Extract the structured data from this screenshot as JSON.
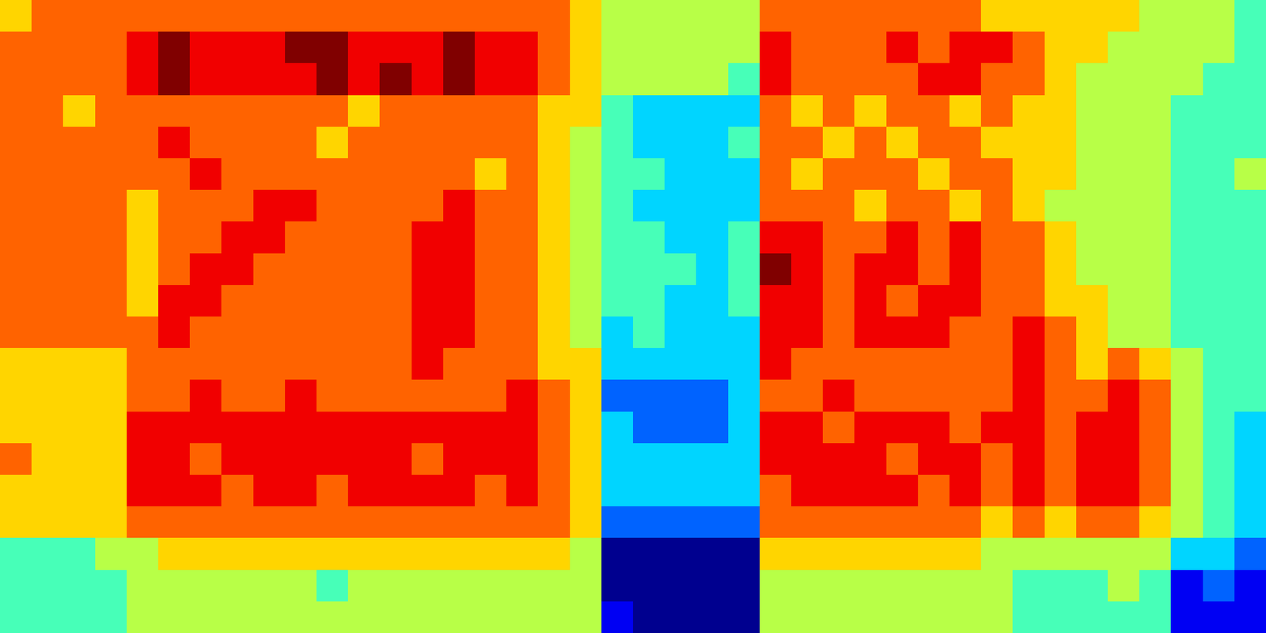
{
  "chart_data": {
    "type": "heatmap",
    "color": "jet",
    "tick_labels": false,
    "cells": [
      [
        6,
        7,
        7,
        7,
        7,
        7,
        7,
        7,
        7,
        7,
        7,
        7,
        7,
        7,
        7,
        7,
        7,
        7,
        6,
        5,
        5,
        5,
        5,
        5,
        7,
        7,
        7,
        7,
        7,
        7,
        7,
        6,
        6,
        6,
        6,
        6,
        5,
        5,
        5,
        4
      ],
      [
        7,
        7,
        7,
        7,
        8,
        9,
        8,
        8,
        8,
        9,
        9,
        8,
        8,
        8,
        9,
        8,
        8,
        7,
        6,
        5,
        5,
        5,
        5,
        5,
        8,
        7,
        7,
        7,
        8,
        7,
        8,
        8,
        7,
        6,
        6,
        5,
        5,
        5,
        5,
        4
      ],
      [
        7,
        7,
        7,
        7,
        8,
        9,
        8,
        8,
        8,
        8,
        9,
        8,
        9,
        8,
        9,
        8,
        8,
        7,
        6,
        5,
        5,
        5,
        5,
        4,
        8,
        7,
        7,
        7,
        7,
        8,
        8,
        7,
        7,
        6,
        5,
        5,
        5,
        5,
        4,
        4
      ],
      [
        7,
        7,
        6,
        7,
        7,
        7,
        7,
        7,
        7,
        7,
        7,
        6,
        7,
        7,
        7,
        7,
        7,
        6,
        6,
        4,
        3,
        3,
        3,
        3,
        7,
        6,
        7,
        6,
        7,
        7,
        6,
        7,
        6,
        6,
        5,
        5,
        5,
        4,
        4,
        4
      ],
      [
        7,
        7,
        7,
        7,
        7,
        8,
        7,
        7,
        7,
        7,
        6,
        7,
        7,
        7,
        7,
        7,
        7,
        6,
        5,
        4,
        3,
        3,
        3,
        4,
        7,
        7,
        6,
        7,
        6,
        7,
        7,
        6,
        6,
        6,
        5,
        5,
        5,
        4,
        4,
        4
      ],
      [
        7,
        7,
        7,
        7,
        7,
        7,
        8,
        7,
        7,
        7,
        7,
        7,
        7,
        7,
        7,
        6,
        7,
        6,
        5,
        4,
        4,
        3,
        3,
        3,
        7,
        6,
        7,
        7,
        7,
        6,
        7,
        7,
        6,
        6,
        5,
        5,
        5,
        4,
        4,
        5
      ],
      [
        7,
        7,
        7,
        7,
        6,
        7,
        7,
        7,
        8,
        8,
        7,
        7,
        7,
        7,
        8,
        7,
        7,
        6,
        5,
        4,
        3,
        3,
        3,
        3,
        7,
        7,
        7,
        6,
        7,
        7,
        6,
        7,
        6,
        5,
        5,
        5,
        5,
        4,
        4,
        4
      ],
      [
        7,
        7,
        7,
        7,
        6,
        7,
        7,
        8,
        8,
        7,
        7,
        7,
        7,
        8,
        8,
        7,
        7,
        6,
        5,
        4,
        4,
        3,
        3,
        4,
        8,
        8,
        7,
        7,
        8,
        7,
        8,
        7,
        7,
        6,
        5,
        5,
        5,
        4,
        4,
        4
      ],
      [
        7,
        7,
        7,
        7,
        6,
        7,
        8,
        8,
        7,
        7,
        7,
        7,
        7,
        8,
        8,
        7,
        7,
        6,
        5,
        4,
        4,
        4,
        3,
        4,
        9,
        8,
        7,
        8,
        8,
        7,
        8,
        7,
        7,
        6,
        5,
        5,
        5,
        4,
        4,
        4
      ],
      [
        7,
        7,
        7,
        7,
        6,
        8,
        8,
        7,
        7,
        7,
        7,
        7,
        7,
        8,
        8,
        7,
        7,
        6,
        5,
        4,
        4,
        3,
        3,
        4,
        8,
        8,
        7,
        8,
        7,
        8,
        8,
        7,
        7,
        6,
        6,
        5,
        5,
        4,
        4,
        4
      ],
      [
        7,
        7,
        7,
        7,
        7,
        8,
        7,
        7,
        7,
        7,
        7,
        7,
        7,
        8,
        8,
        7,
        7,
        6,
        5,
        3,
        4,
        3,
        3,
        3,
        8,
        8,
        7,
        8,
        8,
        8,
        7,
        7,
        8,
        7,
        6,
        5,
        5,
        4,
        4,
        4
      ],
      [
        6,
        6,
        6,
        6,
        7,
        7,
        7,
        7,
        7,
        7,
        7,
        7,
        7,
        8,
        7,
        7,
        7,
        6,
        6,
        3,
        3,
        3,
        3,
        3,
        8,
        7,
        7,
        7,
        7,
        7,
        7,
        7,
        8,
        7,
        6,
        7,
        6,
        5,
        4,
        4
      ],
      [
        6,
        6,
        6,
        6,
        7,
        7,
        8,
        7,
        7,
        8,
        7,
        7,
        7,
        7,
        7,
        7,
        8,
        7,
        6,
        2,
        2,
        2,
        2,
        3,
        7,
        7,
        8,
        7,
        7,
        7,
        7,
        7,
        8,
        7,
        7,
        8,
        7,
        5,
        4,
        4
      ],
      [
        6,
        6,
        6,
        6,
        8,
        8,
        8,
        8,
        8,
        8,
        8,
        8,
        8,
        8,
        8,
        8,
        8,
        7,
        6,
        3,
        2,
        2,
        2,
        3,
        8,
        8,
        7,
        8,
        8,
        8,
        7,
        8,
        8,
        7,
        8,
        8,
        7,
        5,
        4,
        3
      ],
      [
        7,
        6,
        6,
        6,
        8,
        8,
        7,
        8,
        8,
        8,
        8,
        8,
        8,
        7,
        8,
        8,
        8,
        7,
        6,
        3,
        3,
        3,
        3,
        3,
        8,
        8,
        8,
        8,
        7,
        8,
        8,
        7,
        8,
        7,
        8,
        8,
        7,
        5,
        4,
        3
      ],
      [
        6,
        6,
        6,
        6,
        8,
        8,
        8,
        7,
        8,
        8,
        7,
        8,
        8,
        8,
        8,
        7,
        8,
        7,
        6,
        3,
        3,
        3,
        3,
        3,
        7,
        8,
        8,
        8,
        8,
        7,
        8,
        7,
        8,
        7,
        8,
        8,
        7,
        5,
        4,
        3
      ],
      [
        6,
        6,
        6,
        6,
        7,
        7,
        7,
        7,
        7,
        7,
        7,
        7,
        7,
        7,
        7,
        7,
        7,
        7,
        6,
        2,
        2,
        2,
        2,
        2,
        7,
        7,
        7,
        7,
        7,
        7,
        7,
        6,
        7,
        6,
        7,
        7,
        6,
        5,
        4,
        3
      ],
      [
        4,
        4,
        4,
        5,
        5,
        6,
        6,
        6,
        6,
        6,
        6,
        6,
        6,
        6,
        6,
        6,
        6,
        6,
        5,
        0,
        0,
        0,
        0,
        0,
        6,
        6,
        6,
        6,
        6,
        6,
        6,
        5,
        5,
        5,
        5,
        5,
        5,
        3,
        3,
        2
      ],
      [
        4,
        4,
        4,
        4,
        5,
        5,
        5,
        5,
        5,
        5,
        4,
        5,
        5,
        5,
        5,
        5,
        5,
        5,
        5,
        0,
        0,
        0,
        0,
        0,
        5,
        5,
        5,
        5,
        5,
        5,
        5,
        5,
        4,
        4,
        4,
        5,
        4,
        1,
        2,
        1
      ],
      [
        4,
        4,
        4,
        4,
        5,
        5,
        5,
        5,
        5,
        5,
        5,
        5,
        5,
        5,
        5,
        5,
        5,
        5,
        5,
        1,
        0,
        0,
        0,
        0,
        5,
        5,
        5,
        5,
        5,
        5,
        5,
        5,
        4,
        4,
        4,
        4,
        4,
        1,
        1,
        1
      ]
    ]
  }
}
